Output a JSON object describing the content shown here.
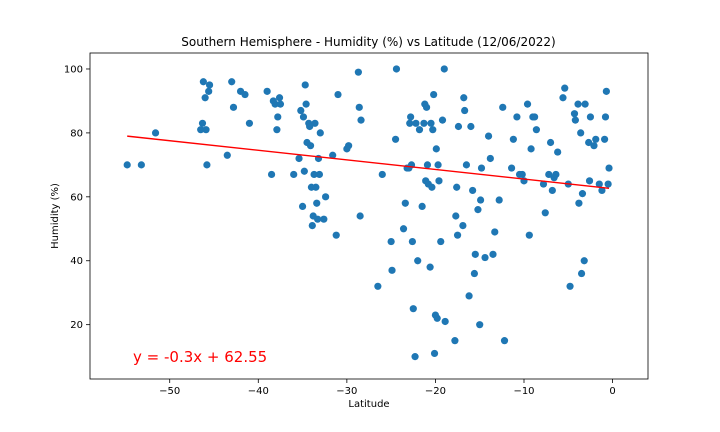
{
  "chart_data": {
    "type": "scatter",
    "title": "Southern Hemisphere - Humidity (%) vs Latitude (12/06/2022)",
    "xlabel": "Latitude",
    "ylabel": "Humidity (%)",
    "xlim": [
      -59,
      4
    ],
    "ylim": [
      3,
      105
    ],
    "xticks": [
      -50,
      -40,
      -30,
      -20,
      -10,
      0
    ],
    "yticks": [
      20,
      40,
      60,
      80,
      100
    ],
    "grid": false,
    "colors": {
      "points": "#1f77b4",
      "regression": "#ff0000",
      "annotation": "#ff0000"
    },
    "regression": {
      "slope": -0.3,
      "intercept": 62.55,
      "x_range": [
        -54.8,
        -0.4
      ],
      "label": "y = -0.3x + 62.55"
    },
    "points": [
      [
        -54.8,
        70
      ],
      [
        -53.2,
        70
      ],
      [
        -51.6,
        80
      ],
      [
        -46.5,
        81
      ],
      [
        -46.3,
        83
      ],
      [
        -46.2,
        96
      ],
      [
        -46.0,
        91
      ],
      [
        -45.9,
        81
      ],
      [
        -45.8,
        70
      ],
      [
        -45.6,
        93
      ],
      [
        -45.5,
        95
      ],
      [
        -43.5,
        73
      ],
      [
        -43.0,
        96
      ],
      [
        -42.8,
        88
      ],
      [
        -42.0,
        93
      ],
      [
        -41.5,
        92
      ],
      [
        -41.0,
        83
      ],
      [
        -39.0,
        93
      ],
      [
        -38.5,
        67
      ],
      [
        -38.3,
        90
      ],
      [
        -38.1,
        89
      ],
      [
        -37.9,
        81
      ],
      [
        -37.8,
        85
      ],
      [
        -37.6,
        91
      ],
      [
        -37.5,
        89
      ],
      [
        -36.0,
        67
      ],
      [
        -35.4,
        72
      ],
      [
        -35.2,
        87
      ],
      [
        -35.0,
        57
      ],
      [
        -34.9,
        85
      ],
      [
        -34.8,
        68
      ],
      [
        -34.7,
        95
      ],
      [
        -34.6,
        89
      ],
      [
        -34.5,
        77
      ],
      [
        -34.3,
        83
      ],
      [
        -34.2,
        82
      ],
      [
        -34.1,
        76
      ],
      [
        -34.0,
        63
      ],
      [
        -33.9,
        51
      ],
      [
        -33.8,
        54
      ],
      [
        -33.7,
        67
      ],
      [
        -33.6,
        83
      ],
      [
        -33.5,
        63
      ],
      [
        -33.4,
        58
      ],
      [
        -33.3,
        53
      ],
      [
        -33.2,
        72
      ],
      [
        -33.1,
        67
      ],
      [
        -33.0,
        80
      ],
      [
        -32.6,
        53
      ],
      [
        -32.4,
        60
      ],
      [
        -31.6,
        73
      ],
      [
        -31.2,
        48
      ],
      [
        -31.0,
        92
      ],
      [
        -30.0,
        75
      ],
      [
        -29.8,
        76
      ],
      [
        -28.7,
        99
      ],
      [
        -28.6,
        88
      ],
      [
        -28.4,
        84
      ],
      [
        -28.5,
        54
      ],
      [
        -26.5,
        32
      ],
      [
        -26.0,
        67
      ],
      [
        -25.0,
        46
      ],
      [
        -24.9,
        37
      ],
      [
        -24.5,
        78
      ],
      [
        -24.4,
        100
      ],
      [
        -23.6,
        50
      ],
      [
        -23.4,
        58
      ],
      [
        -23.2,
        69
      ],
      [
        -23.0,
        69
      ],
      [
        -22.9,
        83
      ],
      [
        -22.8,
        85
      ],
      [
        -22.7,
        70
      ],
      [
        -22.6,
        46
      ],
      [
        -22.5,
        25
      ],
      [
        -22.3,
        10
      ],
      [
        -22.2,
        83
      ],
      [
        -22.0,
        40
      ],
      [
        -21.8,
        81
      ],
      [
        -21.5,
        57
      ],
      [
        -21.3,
        83
      ],
      [
        -21.2,
        89
      ],
      [
        -21.1,
        65
      ],
      [
        -21.0,
        88
      ],
      [
        -20.9,
        70
      ],
      [
        -20.8,
        64
      ],
      [
        -20.6,
        38
      ],
      [
        -20.5,
        83
      ],
      [
        -20.4,
        63
      ],
      [
        -20.3,
        81
      ],
      [
        -20.2,
        92
      ],
      [
        -20.1,
        11
      ],
      [
        -20.0,
        23
      ],
      [
        -19.9,
        75
      ],
      [
        -19.8,
        22
      ],
      [
        -19.7,
        70
      ],
      [
        -19.6,
        65
      ],
      [
        -19.4,
        46
      ],
      [
        -19.2,
        84
      ],
      [
        -19.0,
        100
      ],
      [
        -18.9,
        21
      ],
      [
        -17.8,
        15
      ],
      [
        -17.7,
        54
      ],
      [
        -17.6,
        63
      ],
      [
        -17.5,
        48
      ],
      [
        -17.4,
        82
      ],
      [
        -16.9,
        51
      ],
      [
        -16.8,
        91
      ],
      [
        -16.7,
        87
      ],
      [
        -16.5,
        70
      ],
      [
        -16.2,
        29
      ],
      [
        -16.0,
        82
      ],
      [
        -15.8,
        62
      ],
      [
        -15.6,
        36
      ],
      [
        -15.5,
        42
      ],
      [
        -15.2,
        56
      ],
      [
        -15.0,
        20
      ],
      [
        -14.9,
        59
      ],
      [
        -14.8,
        69
      ],
      [
        -14.4,
        41
      ],
      [
        -14.0,
        79
      ],
      [
        -13.8,
        72
      ],
      [
        -13.5,
        42
      ],
      [
        -13.3,
        49
      ],
      [
        -12.8,
        59
      ],
      [
        -12.4,
        88
      ],
      [
        -12.2,
        15
      ],
      [
        -11.4,
        69
      ],
      [
        -11.2,
        78
      ],
      [
        -10.8,
        85
      ],
      [
        -10.5,
        67
      ],
      [
        -10.2,
        67
      ],
      [
        -10.0,
        65
      ],
      [
        -9.6,
        89
      ],
      [
        -9.4,
        48
      ],
      [
        -9.2,
        75
      ],
      [
        -9.0,
        85
      ],
      [
        -8.8,
        85
      ],
      [
        -8.6,
        81
      ],
      [
        -7.8,
        64
      ],
      [
        -7.6,
        55
      ],
      [
        -7.2,
        67
      ],
      [
        -7.0,
        77
      ],
      [
        -6.8,
        62
      ],
      [
        -6.6,
        66
      ],
      [
        -6.4,
        67
      ],
      [
        -6.2,
        74
      ],
      [
        -5.6,
        91
      ],
      [
        -5.4,
        94
      ],
      [
        -5.0,
        64
      ],
      [
        -4.8,
        32
      ],
      [
        -4.3,
        86
      ],
      [
        -4.2,
        84
      ],
      [
        -3.9,
        89
      ],
      [
        -3.8,
        58
      ],
      [
        -3.6,
        80
      ],
      [
        -3.5,
        36
      ],
      [
        -3.4,
        61
      ],
      [
        -3.2,
        40
      ],
      [
        -3.1,
        89
      ],
      [
        -2.7,
        77
      ],
      [
        -2.6,
        65
      ],
      [
        -2.5,
        85
      ],
      [
        -2.1,
        76
      ],
      [
        -1.9,
        78
      ],
      [
        -1.5,
        64
      ],
      [
        -1.2,
        62
      ],
      [
        -0.9,
        78
      ],
      [
        -0.8,
        85
      ],
      [
        -0.7,
        93
      ],
      [
        -0.5,
        64
      ],
      [
        -0.4,
        69
      ]
    ]
  }
}
